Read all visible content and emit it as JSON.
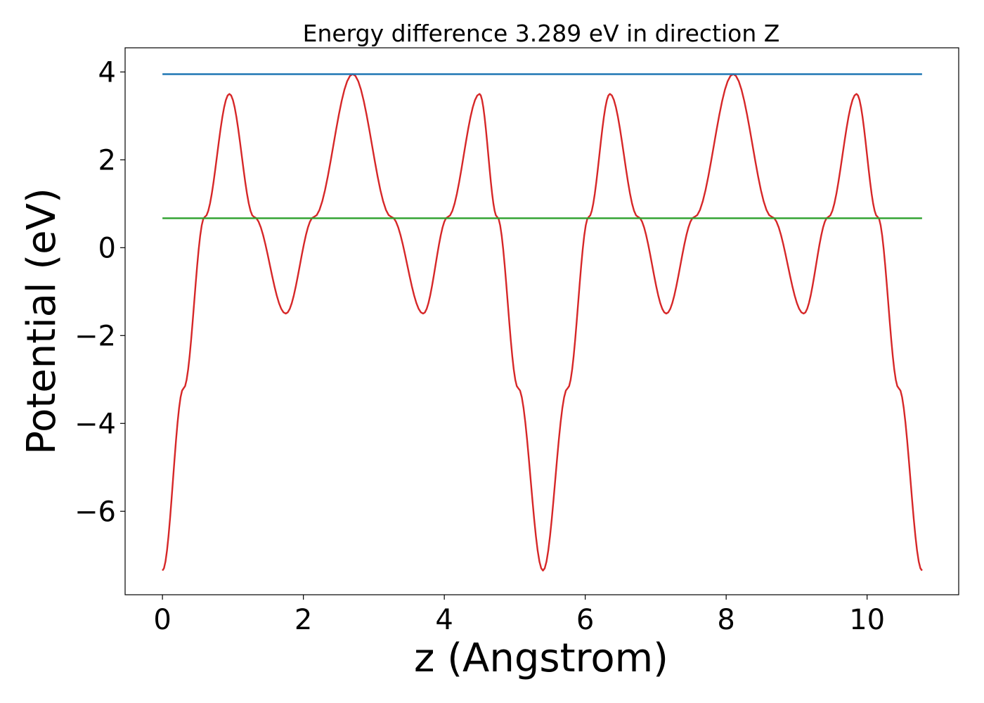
{
  "chart_data": {
    "type": "line",
    "title": "Energy difference 3.289 eV in direction Z",
    "xlabel": "z (Angstrom)",
    "ylabel": "Potential (eV)",
    "xlim": [
      -0.53,
      11.3
    ],
    "ylim": [
      -7.9,
      4.55
    ],
    "xticks": [
      0,
      2,
      4,
      6,
      8,
      10
    ],
    "xtick_labels": [
      "0",
      "2",
      "4",
      "6",
      "8",
      "10"
    ],
    "yticks": [
      -6,
      -4,
      -2,
      0,
      2,
      4
    ],
    "ytick_labels": [
      "−6",
      "−4",
      "−2",
      "0",
      "2",
      "4"
    ],
    "grid": false,
    "series": [
      {
        "color": "#d62728",
        "x": [
          0.0,
          0.3,
          0.6,
          0.95,
          1.3,
          1.75,
          2.15,
          2.7,
          3.25,
          3.7,
          4.05,
          4.5,
          4.75,
          5.05,
          5.4,
          5.75,
          6.05,
          6.35,
          6.75,
          7.15,
          7.55,
          8.1,
          8.65,
          9.1,
          9.45,
          9.85,
          10.15,
          10.45,
          10.78
        ],
        "y": [
          -7.35,
          -3.2,
          0.7,
          3.5,
          0.7,
          -1.5,
          0.7,
          3.95,
          0.7,
          -1.5,
          0.7,
          3.5,
          0.7,
          -3.2,
          -7.35,
          -3.2,
          0.7,
          3.5,
          0.7,
          -1.5,
          0.7,
          3.95,
          0.7,
          -1.5,
          0.7,
          3.5,
          0.7,
          -3.2,
          -7.35
        ]
      },
      {
        "color": "#1f77b4",
        "x": [
          0.0,
          10.78
        ],
        "y": [
          3.95,
          3.95
        ]
      },
      {
        "color": "#2ca02c",
        "x": [
          0.0,
          10.78
        ],
        "y": [
          0.67,
          0.67
        ]
      }
    ]
  }
}
